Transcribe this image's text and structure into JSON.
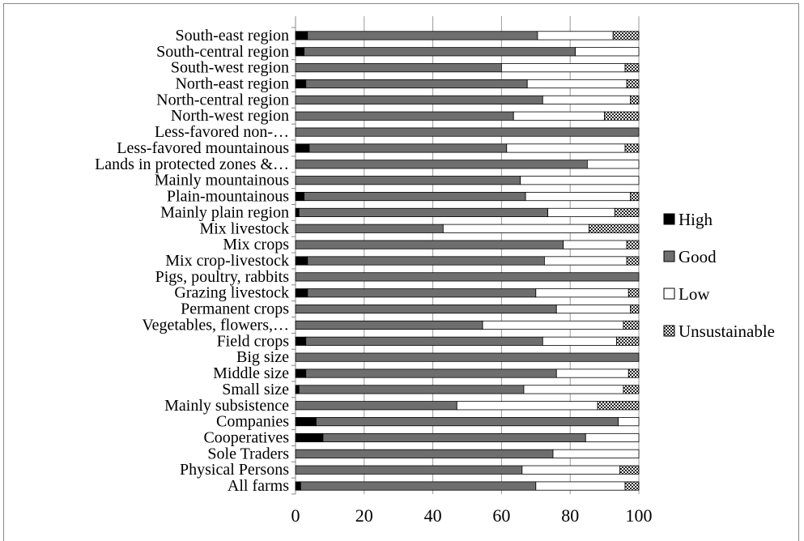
{
  "chart_data": {
    "type": "bar",
    "orientation": "horizontal",
    "stacked": true,
    "categories": [
      "South-east region",
      "South-central region",
      "South-west region",
      "North-east region",
      "North-central region",
      "North-west region",
      "Less-favored non-…",
      "Less-favored mountainous",
      "Lands in protected zones &…",
      "Mainly mountainous",
      "Plain-mountainous",
      "Mainly plain region",
      "Mix livestock",
      "Mix crops",
      "Mix crop-livestock",
      "Pigs, poultry, rabbits",
      "Grazing livestock",
      "Permanent crops",
      "Vegetables, flowers,…",
      "Field crops",
      "Big size",
      "Middle size",
      "Small size",
      "Mainly subsistence",
      "Companies",
      "Cooperatives",
      "Sole Traders",
      "Physical Persons",
      "All farms"
    ],
    "series": [
      {
        "name": "High",
        "color": "#000000",
        "values": [
          3.5,
          2.5,
          0,
          3,
          0,
          0,
          0,
          4,
          0,
          0,
          2.5,
          1,
          0,
          0,
          3.5,
          0,
          3.5,
          0,
          0,
          3,
          0,
          3,
          1,
          0,
          6,
          8,
          0,
          0,
          1.5
        ]
      },
      {
        "name": "Good",
        "color": "#6e6e6e",
        "values": [
          67,
          79,
          60,
          64.5,
          72,
          63.5,
          100,
          57.5,
          85,
          65.5,
          64.5,
          72.5,
          43,
          78,
          69,
          100,
          66.5,
          76,
          54.5,
          69,
          100,
          73,
          65.5,
          47,
          88,
          76.5,
          75,
          66,
          68.5
        ]
      },
      {
        "name": "Low",
        "color": "#ffffff",
        "values": [
          22,
          18.5,
          36,
          29,
          25.5,
          26.5,
          0,
          34.5,
          15,
          34.5,
          30.5,
          19.5,
          42.5,
          18.5,
          24,
          0,
          27,
          21.5,
          41,
          21.5,
          0,
          21,
          29,
          41,
          6,
          15.5,
          25,
          28.5,
          26
        ]
      },
      {
        "name": "Unsustainable",
        "color": "hatched",
        "values": [
          7.5,
          0,
          4,
          3.5,
          2.5,
          10,
          0,
          4,
          0,
          0,
          2.5,
          7,
          14.5,
          3.5,
          3.5,
          0,
          3,
          2.5,
          4.5,
          6.5,
          0,
          3,
          4.5,
          12,
          0,
          0,
          0,
          5.5,
          4
        ]
      }
    ],
    "xlim": [
      0,
      100
    ],
    "xticks": [
      "0",
      "20",
      "40",
      "60",
      "80",
      "100"
    ],
    "grid": true,
    "legend_position": "right",
    "title": "",
    "xlabel": "",
    "ylabel": ""
  }
}
